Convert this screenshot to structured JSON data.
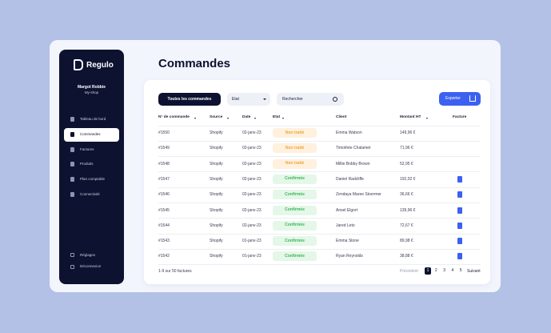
{
  "sidebar": {
    "brand": "Regulo",
    "user_name": "Margot Robbie",
    "shop": "My-shop",
    "nav": [
      "Tableau de bord",
      "Commandes",
      "Factures",
      "Produits",
      "Plan comptable",
      "Connectivité"
    ],
    "active_nav": 1,
    "bottom_nav": [
      "Réglages",
      "Déconnexion"
    ]
  },
  "header": {
    "title": "Commandes"
  },
  "toolbar": {
    "tab": "Toutes les commandes",
    "status_filter": "Etat",
    "search": "Rechercher",
    "export": "Exporter"
  },
  "table": {
    "columns": [
      "N° de commande",
      "Source",
      "Date",
      "Etat",
      "Client",
      "Montant HT",
      "Facture"
    ],
    "rows": [
      {
        "cells": [
          "#1550",
          "Shopify",
          "02-janv-23",
          "Non traité",
          "Emma Watson",
          "149,96 €"
        ],
        "tone": "pending",
        "invoice": false
      },
      {
        "cells": [
          "#1549",
          "Shopify",
          "02-janv-23",
          "Non traité",
          "Timothée Chalamet",
          "71,96 €"
        ],
        "tone": "pending",
        "invoice": false
      },
      {
        "cells": [
          "#1548",
          "Shopify",
          "02-janv-23",
          "Non traité",
          "Millie Bobby Brown",
          "52,95 €"
        ],
        "tone": "pending",
        "invoice": false
      },
      {
        "cells": [
          "#1547",
          "Shopify",
          "02-janv-23",
          "Confirmée",
          "Daniel Radcliffe",
          "192,02 €"
        ],
        "tone": "done",
        "invoice": true
      },
      {
        "cells": [
          "#1546",
          "Shopify",
          "02-janv-23",
          "Confirmée",
          "Zendaya Maree Stoermer",
          "36,66 €"
        ],
        "tone": "done",
        "invoice": true
      },
      {
        "cells": [
          "#1545",
          "Shopify",
          "02-janv-23",
          "Confirmée",
          "Ansel Elgort",
          "139,96 €"
        ],
        "tone": "done",
        "invoice": true
      },
      {
        "cells": [
          "#1544",
          "Shopify",
          "02-janv-23",
          "Confirmée",
          "Jared Leto",
          "72,67 €"
        ],
        "tone": "done",
        "invoice": true
      },
      {
        "cells": [
          "#1543",
          "Shopify",
          "01-janv-23",
          "Confirmée",
          "Emma Stone",
          "89,98 €"
        ],
        "tone": "done",
        "invoice": true
      },
      {
        "cells": [
          "#1542",
          "Shopify",
          "01-janv-23",
          "Confirmée",
          "Ryan Reynolds",
          "38,88 €"
        ],
        "tone": "done",
        "invoice": true
      }
    ]
  },
  "footer": {
    "count": "1-9 sur 50 factures",
    "previous": "Précédent",
    "pages": [
      "1",
      "2",
      "3",
      "4",
      "5"
    ],
    "current_page": 0,
    "next": "Suivant"
  }
}
